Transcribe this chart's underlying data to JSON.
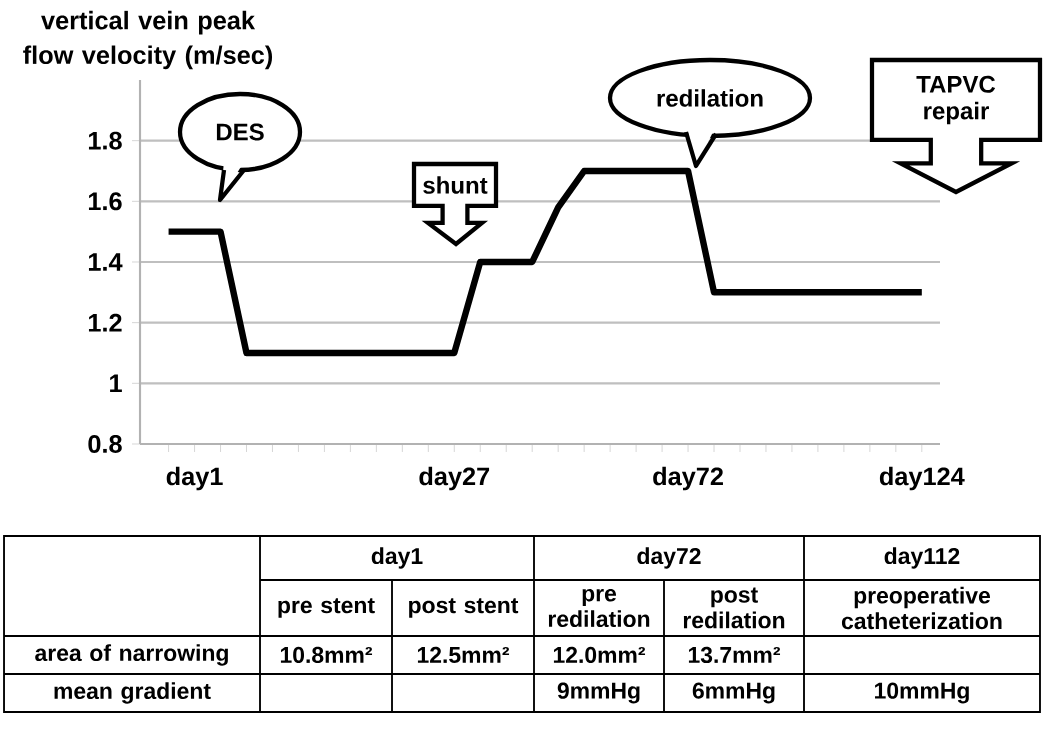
{
  "chart_data": {
    "type": "line",
    "ylabel": "vertical vein peak flow velocity (m/sec)",
    "categories": [
      null,
      "day1",
      null,
      null,
      null,
      null,
      null,
      null,
      null,
      null,
      null,
      "day27",
      null,
      null,
      null,
      null,
      null,
      null,
      null,
      null,
      "day72",
      null,
      null,
      null,
      null,
      null,
      null,
      null,
      null,
      "day124"
    ],
    "series": [
      {
        "color": "#000000",
        "values": [
          1.5,
          1.5,
          1.5,
          1.1,
          1.1,
          1.1,
          1.1,
          1.1,
          1.1,
          1.1,
          1.1,
          1.1,
          1.4,
          1.4,
          1.4,
          1.58,
          1.7,
          1.7,
          1.7,
          1.7,
          1.7,
          1.3,
          1.3,
          1.3,
          1.3,
          1.3,
          1.3,
          1.3,
          1.3,
          1.3
        ]
      }
    ],
    "ylim": [
      0.8,
      2.0
    ],
    "yticks": [
      0.8,
      1,
      1.2,
      1.4,
      1.6,
      1.8
    ],
    "grid": "y",
    "annotations": [
      "DES",
      "shunt",
      "redilation",
      "TAPVC repair",
      "day1",
      "day72",
      "day112",
      "pre stent",
      "post stent",
      "pre redilation",
      "post redilation",
      "preoperative catheterization",
      "area of narrowing",
      "10.8mm²",
      "12.5mm²",
      "12.0mm²",
      "13.7mm²",
      "mean gradient",
      "9mmHg",
      "6mmHg",
      "10mmHg"
    ]
  }
}
